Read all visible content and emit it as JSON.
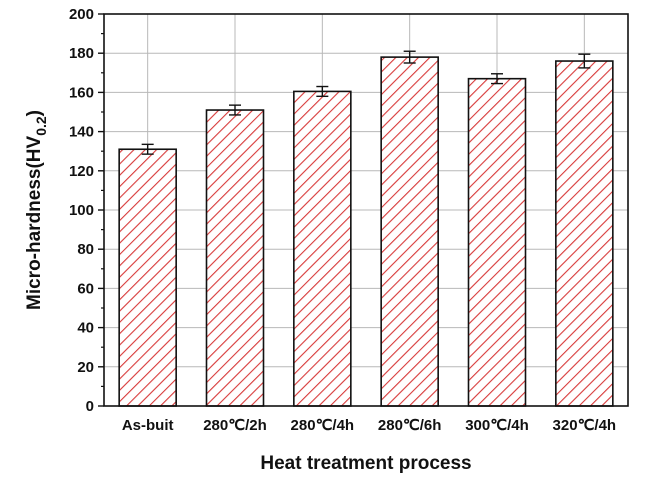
{
  "chart_data": {
    "type": "bar",
    "title": "",
    "xlabel": "Heat treatment process",
    "ylabel_main": "Micro-hardness(HV",
    "ylabel_sub": "0.2",
    "ylabel_close": ")",
    "categories": [
      "As-buit",
      "280℃/2h",
      "280℃/4h",
      "280℃/6h",
      "300℃/4h",
      "320℃/4h"
    ],
    "values": [
      131,
      151,
      160.5,
      178,
      167,
      176
    ],
    "errors": [
      2.5,
      2.5,
      2.5,
      3,
      2.5,
      3.5
    ],
    "ylim": [
      0,
      200
    ],
    "yticks": [
      0,
      20,
      40,
      60,
      80,
      100,
      120,
      140,
      160,
      180,
      200
    ],
    "grid": true,
    "bar_fill": "hatched",
    "colors": {
      "bar_edge": "#111111",
      "hatch": "#d83a3a",
      "grid": "#b8b8b8",
      "axis": "#111111"
    }
  }
}
